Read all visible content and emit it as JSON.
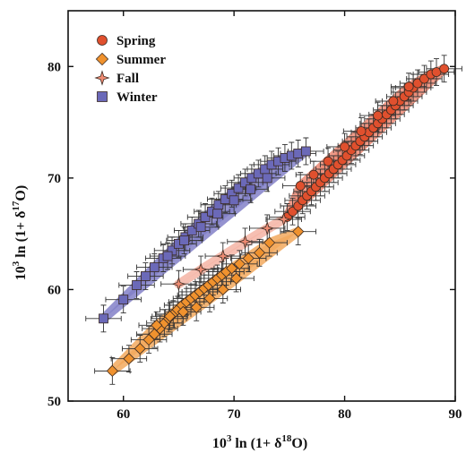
{
  "chart_data": {
    "type": "scatter",
    "xlabel": {
      "base": "10",
      "sup1": "3",
      "mid": " ln (1+ δ",
      "sup2": "18",
      "end": "O)"
    },
    "ylabel": {
      "base": "10",
      "sup1": "3",
      "mid": " ln (1+ δ",
      "sup2": "17",
      "end": "O)"
    },
    "xlim": [
      55,
      90
    ],
    "ylim": [
      50,
      85
    ],
    "xticks": [
      60,
      70,
      80,
      90
    ],
    "yticks": [
      50,
      60,
      70,
      80
    ],
    "grid": false,
    "legend_position": "top-left",
    "x_error": 1.6,
    "y_error": 1.2,
    "series": [
      {
        "name": "Spring",
        "marker": "circle",
        "color": "#e0502e",
        "band_color": "#ec8a74",
        "x": [
          74.8,
          75.3,
          75.8,
          76.2,
          76.6,
          77.0,
          77.4,
          77.8,
          78.2,
          78.6,
          79.0,
          79.4,
          79.8,
          80.2,
          80.6,
          81.0,
          81.4,
          81.8,
          82.2,
          82.6,
          83.0,
          83.4,
          83.8,
          84.2,
          84.6,
          85.0,
          85.4,
          85.8,
          86.2,
          86.6,
          87.2,
          87.8,
          88.3,
          89.0,
          76.0,
          77.2,
          78.5,
          80.0,
          81.5,
          83.0,
          84.4,
          85.8
        ],
        "y": [
          66.5,
          67.0,
          67.5,
          68.0,
          68.4,
          68.8,
          69.2,
          69.6,
          70.0,
          70.4,
          70.8,
          71.2,
          71.6,
          72.0,
          72.5,
          72.9,
          73.3,
          73.7,
          74.1,
          74.5,
          74.9,
          75.3,
          75.7,
          76.1,
          76.5,
          76.9,
          77.3,
          77.7,
          78.1,
          78.5,
          78.9,
          79.3,
          79.5,
          79.8,
          69.3,
          70.3,
          71.5,
          72.8,
          74.2,
          75.6,
          76.9,
          78.2
        ]
      },
      {
        "name": "Summer",
        "marker": "diamond",
        "color": "#f0922e",
        "band_color": "#f2a95e",
        "x": [
          59.0,
          60.5,
          61.5,
          62.3,
          62.8,
          63.3,
          63.7,
          64.1,
          64.5,
          64.9,
          65.3,
          65.7,
          66.1,
          66.5,
          66.9,
          67.3,
          67.7,
          68.1,
          68.5,
          68.9,
          69.3,
          69.8,
          70.5,
          71.3,
          72.3,
          73.2,
          75.8,
          63.0,
          64.2,
          65.4,
          66.6,
          67.8,
          69.0,
          70.2
        ],
        "y": [
          52.7,
          53.8,
          54.7,
          55.5,
          56.0,
          56.5,
          57.0,
          57.4,
          57.8,
          58.2,
          58.6,
          58.9,
          59.2,
          59.5,
          59.8,
          60.1,
          60.4,
          60.7,
          61.0,
          61.3,
          61.6,
          61.9,
          62.3,
          62.8,
          63.3,
          64.2,
          65.2,
          56.8,
          57.6,
          58.0,
          58.4,
          59.2,
          60.0,
          61.0
        ]
      },
      {
        "name": "Fall",
        "marker": "star",
        "color": "#ef8b72",
        "band_color": "#f4b4a4",
        "x": [
          65.0,
          67.0,
          69.0,
          71.0,
          73.0,
          74.5
        ],
        "y": [
          60.5,
          61.8,
          63.0,
          64.3,
          65.5,
          66.3
        ]
      },
      {
        "name": "Winter",
        "marker": "square",
        "color": "#6b69b8",
        "band_color": "#8380c8",
        "x": [
          58.2,
          60.0,
          61.2,
          62.0,
          62.8,
          63.6,
          64.4,
          65.0,
          65.6,
          66.2,
          66.8,
          67.4,
          68.0,
          68.6,
          69.2,
          69.8,
          70.4,
          71.0,
          71.6,
          72.2,
          72.8,
          73.4,
          74.0,
          74.6,
          75.2,
          75.8,
          76.5,
          64.0,
          65.5,
          67.0,
          68.5,
          70.0,
          71.5,
          73.0
        ],
        "y": [
          57.4,
          59.1,
          60.4,
          61.2,
          62.0,
          62.8,
          63.5,
          64.1,
          64.7,
          65.3,
          65.9,
          66.5,
          67.0,
          67.6,
          68.1,
          68.6,
          69.1,
          69.6,
          70.0,
          70.4,
          70.8,
          71.2,
          71.5,
          71.8,
          72.0,
          72.2,
          72.4,
          63.0,
          64.4,
          65.6,
          66.8,
          68.0,
          69.0,
          70.0
        ]
      }
    ]
  }
}
